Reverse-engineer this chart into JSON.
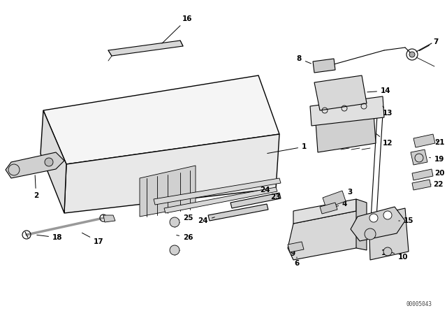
{
  "bg_color": "#ffffff",
  "line_color": "#000000",
  "fig_width": 6.4,
  "fig_height": 4.48,
  "dpi": 100,
  "watermark": "00005043",
  "lw_main": 1.0,
  "lw_thin": 0.6,
  "lw_med": 0.8
}
